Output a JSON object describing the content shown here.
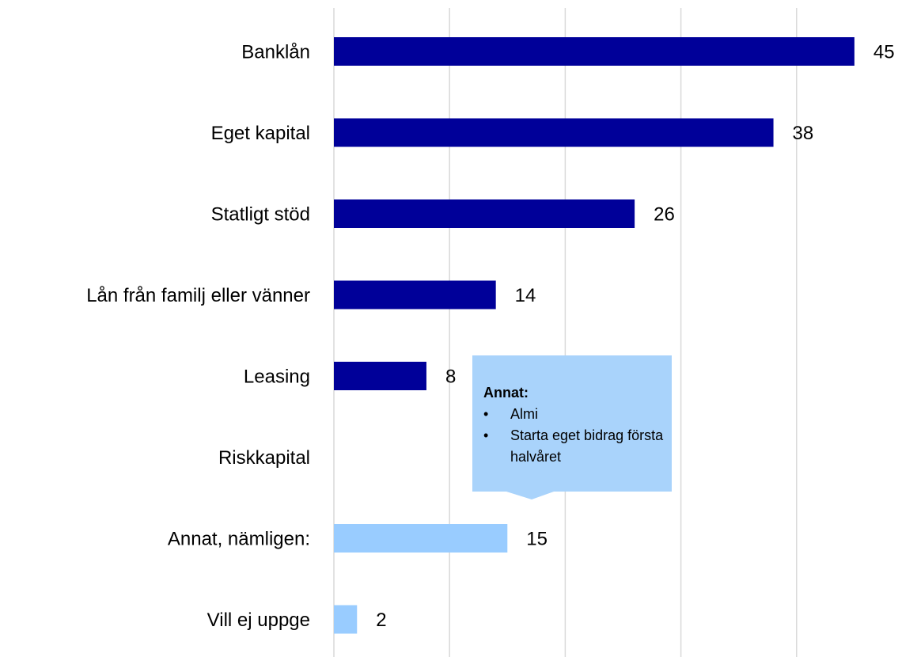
{
  "chart_data": {
    "type": "bar",
    "orientation": "horizontal",
    "categories": [
      "Banklån",
      "Eget kapital",
      "Statligt stöd",
      "Lån från familj eller vänner",
      "Leasing",
      "Riskkapital",
      "Annat, nämligen:",
      "Vill ej uppge"
    ],
    "values": [
      45,
      38,
      26,
      14,
      8,
      null,
      15,
      2
    ],
    "colors": [
      "#000099",
      "#000099",
      "#000099",
      "#000099",
      "#000099",
      "#000099",
      "#99ccff",
      "#99ccff"
    ],
    "xlim": [
      0,
      50
    ],
    "xticks": [
      0,
      10,
      20,
      30,
      40
    ],
    "grid": true,
    "annotation": {
      "title": "Annat:",
      "items": [
        "Almi",
        "Starta eget bidrag första halvåret"
      ]
    }
  }
}
